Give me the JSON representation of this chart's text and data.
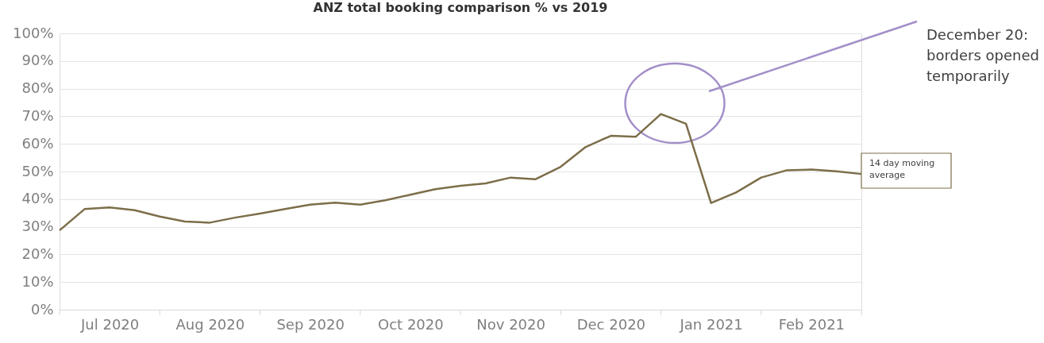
{
  "chart_data": {
    "type": "line",
    "title": "ANZ total booking comparison % vs 2019",
    "categories": [
      null,
      null,
      "Jul 2020",
      null,
      null,
      null,
      "Aug 2020",
      null,
      null,
      null,
      "Sep 2020",
      null,
      null,
      null,
      "Oct 2020",
      null,
      null,
      null,
      "Nov 2020",
      null,
      null,
      null,
      "Dec 2020",
      null,
      null,
      null,
      "Jan 2021",
      null,
      null,
      null,
      "Feb 2021",
      null,
      null
    ],
    "series": [
      {
        "name": "14 day moving average",
        "color": "#7d6e4a",
        "values": [
          28.7,
          36.4,
          37.0,
          36.0,
          33.7,
          31.9,
          31.5,
          33.3,
          34.8,
          36.4,
          38.0,
          38.7,
          38.0,
          39.6,
          41.6,
          43.6,
          44.8,
          45.7,
          47.8,
          47.2,
          51.7,
          58.9,
          62.9,
          62.6,
          70.8,
          67.3,
          38.6,
          42.4,
          47.8,
          50.4,
          50.7,
          50.1,
          49.1
        ]
      }
    ],
    "ylim": [
      0,
      100
    ],
    "yticks": [
      {
        "value": 0,
        "label": "0%"
      },
      {
        "value": 10,
        "label": "10%"
      },
      {
        "value": 20,
        "label": "20%"
      },
      {
        "value": 30,
        "label": "30%"
      },
      {
        "value": 40,
        "label": "40%"
      },
      {
        "value": 50,
        "label": "50%"
      },
      {
        "value": 60,
        "label": "60%"
      },
      {
        "value": 70,
        "label": "70%"
      },
      {
        "value": 80,
        "label": "80%"
      },
      {
        "value": 90,
        "label": "90%"
      },
      {
        "value": 100,
        "label": "100%"
      }
    ],
    "grid": "y",
    "legend": false,
    "annotations": [
      "December 20: borders opened temporarily"
    ]
  }
}
